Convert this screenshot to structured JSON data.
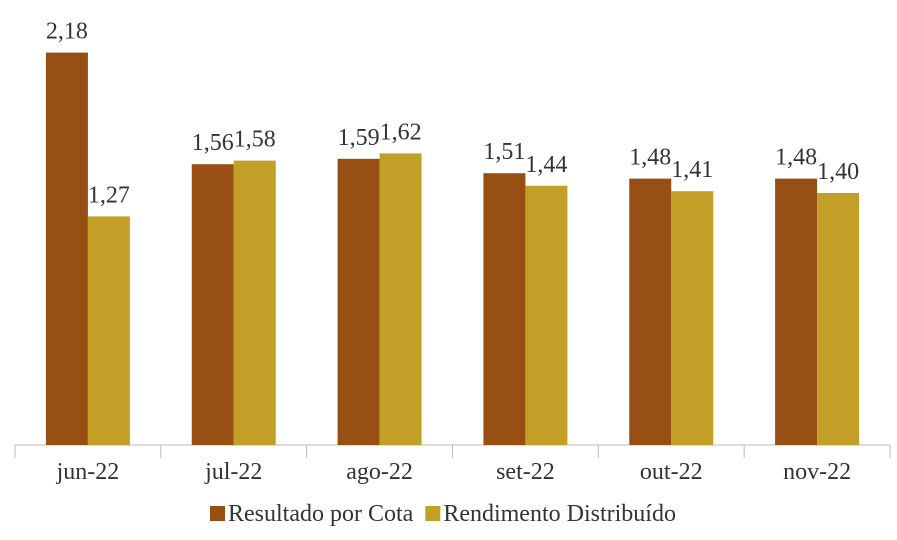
{
  "chart_data": {
    "type": "bar",
    "categories": [
      "jun-22",
      "jul-22",
      "ago-22",
      "set-22",
      "out-22",
      "nov-22"
    ],
    "series": [
      {
        "name": "Resultado por Cota",
        "color": "#974f13",
        "values": [
          2.18,
          1.56,
          1.59,
          1.51,
          1.48,
          1.48
        ],
        "value_labels": [
          "2,18",
          "1,56",
          "1,59",
          "1,51",
          "1,48",
          "1,48"
        ]
      },
      {
        "name": "Rendimento Distribuído",
        "color": "#c2a027",
        "values": [
          1.27,
          1.58,
          1.62,
          1.44,
          1.41,
          1.4
        ],
        "value_labels": [
          "1,27",
          "1,58",
          "1,62",
          "1,44",
          "1,41",
          "1,40"
        ]
      }
    ],
    "ylim": [
      0,
      2.4
    ]
  }
}
